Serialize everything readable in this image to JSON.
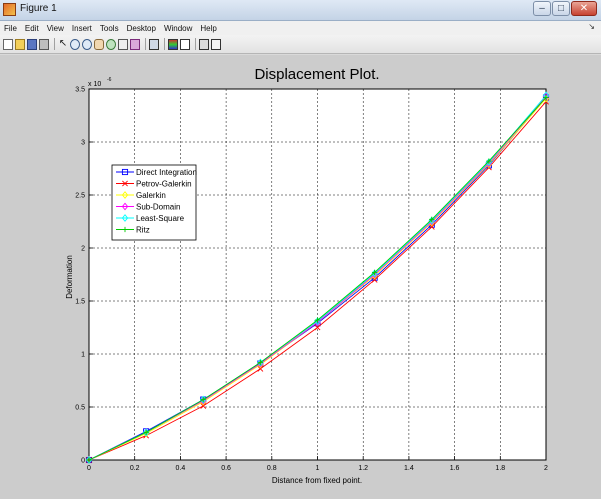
{
  "window": {
    "title": "Figure 1",
    "icon": "matlab-figure-icon",
    "controls": [
      "minimize",
      "maximize",
      "close"
    ]
  },
  "menubar": {
    "items": [
      "File",
      "Edit",
      "View",
      "Insert",
      "Tools",
      "Desktop",
      "Window",
      "Help"
    ]
  },
  "toolbar": {
    "icons": [
      "new-figure-icon",
      "open-file-icon",
      "save-icon",
      "print-icon",
      "pointer-arrow-icon",
      "zoom-in-icon",
      "zoom-out-icon",
      "pan-hand-icon",
      "rotate-3d-icon",
      "data-cursor-icon",
      "brush-icon",
      "link-plot-icon",
      "colorbar-icon",
      "legend-icon",
      "hide-plot-tools-icon",
      "show-plot-tools-icon"
    ]
  },
  "chart_data": {
    "type": "line",
    "title": "Displacement Plot.",
    "xlabel": "Distance from fixed point.",
    "ylabel": "Deformation",
    "y_exponent_label": "x 10",
    "y_exponent": "-6",
    "xlim": [
      0,
      2
    ],
    "ylim": [
      0,
      3.5
    ],
    "x_ticks": [
      "0",
      "0.2",
      "0.4",
      "0.6",
      "0.8",
      "1",
      "1.2",
      "1.4",
      "1.6",
      "1.8",
      "2"
    ],
    "y_ticks": [
      "0",
      "0.5",
      "1",
      "1.5",
      "2",
      "2.5",
      "3",
      "3.5"
    ],
    "x_tick_values": [
      0,
      0.2,
      0.4,
      0.6,
      0.8,
      1.0,
      1.2,
      1.4,
      1.6,
      1.8,
      2.0
    ],
    "y_tick_values": [
      0,
      0.5,
      1.0,
      1.5,
      2.0,
      2.5,
      3.0,
      3.5
    ],
    "grid": true,
    "legend_position": "left",
    "x": [
      0,
      0.25,
      0.5,
      0.75,
      1.0,
      1.25,
      1.5,
      1.75,
      2.0
    ],
    "series": [
      {
        "name": "Direct Integration",
        "color": "#0000ff",
        "marker": "square",
        "values": [
          0,
          0.27,
          0.57,
          0.91,
          1.29,
          1.72,
          2.22,
          2.78,
          3.42
        ]
      },
      {
        "name": "Petrov-Galerkin",
        "color": "#ff0000",
        "marker": "x",
        "values": [
          0,
          0.23,
          0.51,
          0.86,
          1.25,
          1.7,
          2.2,
          2.76,
          3.38
        ]
      },
      {
        "name": "Galerkin",
        "color": "#ffff00",
        "marker": "diamond",
        "values": [
          0,
          0.25,
          0.55,
          0.9,
          1.3,
          1.74,
          2.24,
          2.79,
          3.41
        ]
      },
      {
        "name": "Sub-Domain",
        "color": "#ff00ff",
        "marker": "diamond",
        "values": [
          0,
          0.26,
          0.56,
          0.91,
          1.3,
          1.75,
          2.25,
          2.8,
          3.43
        ]
      },
      {
        "name": "Least-Square",
        "color": "#00ffff",
        "marker": "diamond",
        "values": [
          0,
          0.26,
          0.57,
          0.92,
          1.31,
          1.76,
          2.26,
          2.81,
          3.44
        ]
      },
      {
        "name": "Ritz",
        "color": "#00cc00",
        "marker": "plus",
        "values": [
          0,
          0.26,
          0.57,
          0.92,
          1.32,
          1.77,
          2.27,
          2.82,
          3.42
        ]
      }
    ]
  }
}
